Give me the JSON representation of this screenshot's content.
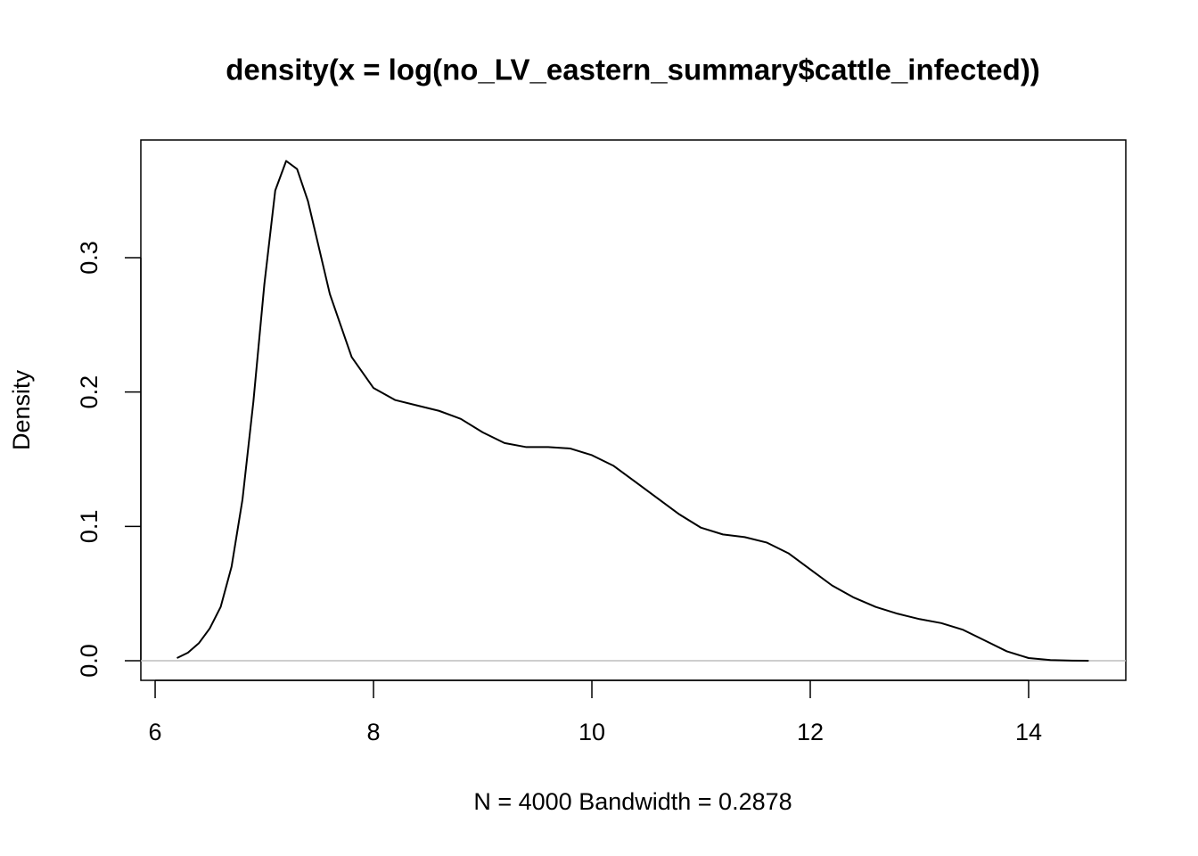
{
  "chart_data": {
    "type": "line",
    "title": "density(x = log(no_LV_eastern_summary$cattle_infected))",
    "x_label": "N = 4000   Bandwidth = 0.2878",
    "y_label": "Density",
    "x": [
      6.2,
      6.3,
      6.4,
      6.5,
      6.6,
      6.7,
      6.8,
      6.9,
      7.0,
      7.1,
      7.2,
      7.3,
      7.4,
      7.6,
      7.8,
      8.0,
      8.2,
      8.4,
      8.6,
      8.8,
      9.0,
      9.2,
      9.4,
      9.6,
      9.8,
      10.0,
      10.2,
      10.4,
      10.6,
      10.8,
      11.0,
      11.2,
      11.4,
      11.6,
      11.8,
      12.0,
      12.2,
      12.4,
      12.6,
      12.8,
      13.0,
      13.2,
      13.4,
      13.6,
      13.8,
      14.0,
      14.2,
      14.4,
      14.55
    ],
    "series": [
      {
        "color": "#000000",
        "values": [
          0.002,
          0.006,
          0.013,
          0.024,
          0.04,
          0.07,
          0.12,
          0.193,
          0.28,
          0.35,
          0.372,
          0.366,
          0.342,
          0.273,
          0.226,
          0.203,
          0.194,
          0.19,
          0.186,
          0.18,
          0.17,
          0.162,
          0.159,
          0.159,
          0.158,
          0.153,
          0.145,
          0.133,
          0.121,
          0.109,
          0.099,
          0.094,
          0.092,
          0.088,
          0.08,
          0.068,
          0.056,
          0.047,
          0.04,
          0.035,
          0.031,
          0.028,
          0.023,
          0.015,
          0.007,
          0.002,
          0.0005,
          0.0001,
          0
        ]
      }
    ],
    "xlim": [
      5.869,
      14.89
    ],
    "ylim": [
      -0.0146,
      0.3876
    ],
    "xticks": [
      6,
      8,
      10,
      12,
      14
    ],
    "yticks": [
      {
        "value": 0,
        "label": "0.0"
      },
      0.1,
      0.2,
      0.3
    ],
    "zero_line": true
  }
}
